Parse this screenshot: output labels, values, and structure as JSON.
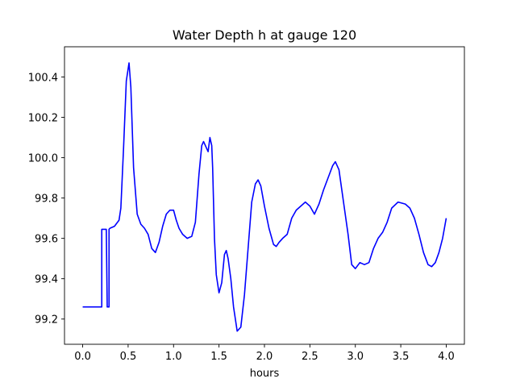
{
  "chart_data": {
    "type": "line",
    "title": "Water Depth h at gauge 120",
    "xlabel": "hours",
    "ylabel": "",
    "xlim": [
      -0.2,
      4.2
    ],
    "ylim": [
      99.075,
      100.55
    ],
    "xticks": [
      0.0,
      0.5,
      1.0,
      1.5,
      2.0,
      2.5,
      3.0,
      3.5,
      4.0
    ],
    "xtick_labels": [
      "0.0",
      "0.5",
      "1.0",
      "1.5",
      "2.0",
      "2.5",
      "3.0",
      "3.5",
      "4.0"
    ],
    "yticks": [
      99.2,
      99.4,
      99.6,
      99.8,
      100.0,
      100.2,
      100.4
    ],
    "ytick_labels": [
      "99.2",
      "99.4",
      "99.6",
      "99.8",
      "100.0",
      "100.2",
      "100.4"
    ],
    "grid": false,
    "series": [
      {
        "color": "#0000ff",
        "x": [
          0.0,
          0.2,
          0.2,
          0.21,
          0.21,
          0.26,
          0.26,
          0.27,
          0.27,
          0.29,
          0.29,
          0.3,
          0.35,
          0.4,
          0.42,
          0.45,
          0.48,
          0.51,
          0.53,
          0.56,
          0.6,
          0.64,
          0.68,
          0.72,
          0.76,
          0.8,
          0.84,
          0.88,
          0.92,
          0.96,
          1.0,
          1.03,
          1.06,
          1.1,
          1.15,
          1.2,
          1.24,
          1.28,
          1.31,
          1.33,
          1.35,
          1.38,
          1.4,
          1.42,
          1.43,
          1.45,
          1.47,
          1.5,
          1.53,
          1.56,
          1.58,
          1.6,
          1.63,
          1.66,
          1.7,
          1.74,
          1.78,
          1.82,
          1.86,
          1.9,
          1.93,
          1.96,
          2.0,
          2.05,
          2.1,
          2.13,
          2.16,
          2.2,
          2.25,
          2.3,
          2.35,
          2.4,
          2.45,
          2.5,
          2.55,
          2.6,
          2.65,
          2.7,
          2.75,
          2.78,
          2.82,
          2.87,
          2.92,
          2.96,
          3.0,
          3.05,
          3.1,
          3.15,
          3.2,
          3.25,
          3.3,
          3.35,
          3.4,
          3.47,
          3.55,
          3.6,
          3.65,
          3.7,
          3.75,
          3.8,
          3.84,
          3.88,
          3.92,
          3.96,
          4.0
        ],
        "y": [
          99.26,
          99.26,
          99.26,
          99.26,
          99.645,
          99.645,
          99.645,
          99.26,
          99.26,
          99.26,
          99.645,
          99.65,
          99.66,
          99.69,
          99.75,
          100.05,
          100.38,
          100.47,
          100.35,
          99.95,
          99.72,
          99.67,
          99.65,
          99.62,
          99.55,
          99.53,
          99.58,
          99.66,
          99.72,
          99.74,
          99.74,
          99.69,
          99.65,
          99.62,
          99.6,
          99.61,
          99.68,
          99.92,
          100.06,
          100.08,
          100.06,
          100.03,
          100.1,
          100.06,
          99.95,
          99.6,
          99.42,
          99.33,
          99.38,
          99.52,
          99.54,
          99.5,
          99.4,
          99.26,
          99.14,
          99.16,
          99.32,
          99.55,
          99.78,
          99.87,
          99.89,
          99.86,
          99.76,
          99.65,
          99.57,
          99.56,
          99.58,
          99.6,
          99.62,
          99.7,
          99.74,
          99.76,
          99.78,
          99.76,
          99.72,
          99.77,
          99.84,
          99.9,
          99.96,
          99.98,
          99.94,
          99.78,
          99.62,
          99.47,
          99.45,
          99.48,
          99.47,
          99.48,
          99.55,
          99.6,
          99.63,
          99.68,
          99.75,
          99.78,
          99.77,
          99.75,
          99.7,
          99.62,
          99.53,
          99.47,
          99.46,
          99.48,
          99.53,
          99.6,
          99.7
        ]
      }
    ]
  }
}
